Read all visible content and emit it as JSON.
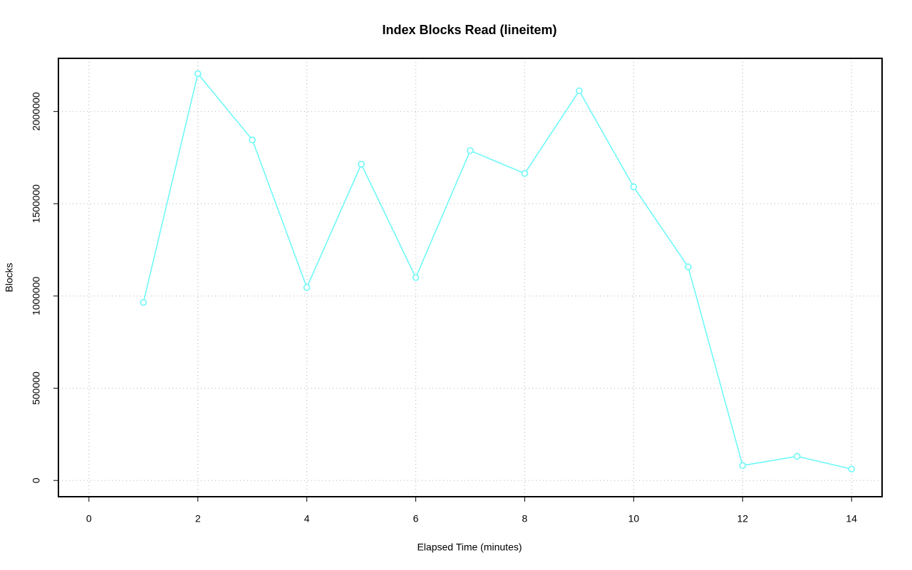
{
  "chart_data": {
    "type": "line",
    "title": "Index Blocks Read (lineitem)",
    "x_label": "Elapsed Time (minutes)",
    "y_label": "Blocks",
    "x": [
      1,
      2,
      3,
      4,
      5,
      6,
      7,
      8,
      9,
      10,
      11,
      12,
      13,
      14
    ],
    "series": [
      {
        "name": "lineitem",
        "color": "#6ff8f8",
        "values": [
          965000,
          2205000,
          1846000,
          1046000,
          1714000,
          1100000,
          1788000,
          1664000,
          2112000,
          1591000,
          1158000,
          81000,
          131000,
          62000
        ]
      }
    ],
    "xlim": [
      -0.56,
      14.56
    ],
    "xticks": [
      0,
      2,
      4,
      6,
      8,
      10,
      12,
      14
    ],
    "ylim": [
      -88000,
      2288000
    ],
    "yticks": [
      0,
      500000,
      1000000,
      1500000,
      2000000
    ],
    "grid": true
  }
}
